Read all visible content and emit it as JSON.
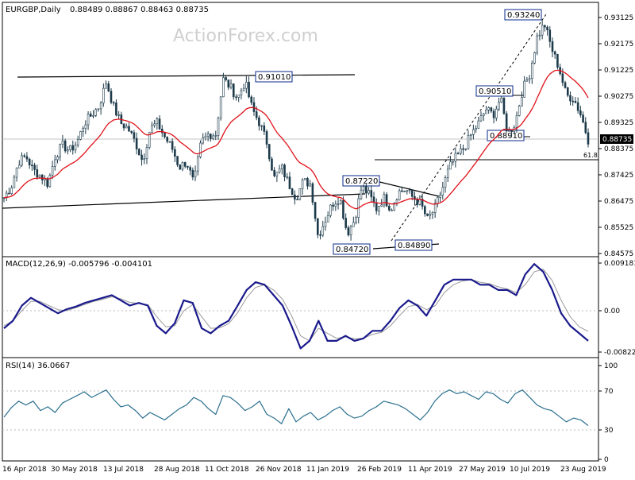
{
  "header": {
    "symbol": "EURGBP,Daily",
    "ohlc": "0.88489 0.88867 0.88463 0.88735"
  },
  "watermark": "ActionForex.com",
  "colors": {
    "price": "#1c3a4a",
    "ema": "#e0121a",
    "macd": "#1a1a8c",
    "signal": "#9a9a9a",
    "rsi": "#2a6f8e",
    "box": "#0a2a8a"
  },
  "chart_data": [
    {
      "type": "candlestick",
      "title": "EURGBP,Daily",
      "ylim": [
        0.8452,
        0.9338
      ],
      "x_labels": [
        "16 Apr 2018",
        "30 May 2018",
        "13 Jul 2018",
        "28 Aug 2018",
        "11 Oct 2018",
        "26 Nov 2018",
        "11 Jan 2019",
        "26 Feb 2019",
        "11 Apr 2019",
        "27 May 2019",
        "10 Jul 2019",
        "23 Aug 2019"
      ],
      "y_ticks": [
        "0.93125",
        "0.92175",
        "0.91225",
        "0.90275",
        "0.89325",
        "0.88375",
        "0.87425",
        "0.86475",
        "0.85525",
        "0.84575"
      ],
      "current_price": "0.88735",
      "annotations": [
        "0.93240",
        "0.91010",
        "0.90510",
        "0.88910",
        "0.87220",
        "0.84720",
        "0.84890",
        "61.8"
      ],
      "price_path": [
        0.866,
        0.87,
        0.879,
        0.881,
        0.876,
        0.874,
        0.871,
        0.881,
        0.885,
        0.883,
        0.886,
        0.893,
        0.896,
        0.899,
        0.908,
        0.899,
        0.893,
        0.891,
        0.886,
        0.879,
        0.891,
        0.893,
        0.888,
        0.884,
        0.877,
        0.879,
        0.871,
        0.886,
        0.889,
        0.889,
        0.909,
        0.906,
        0.902,
        0.908,
        0.898,
        0.893,
        0.886,
        0.873,
        0.877,
        0.871,
        0.866,
        0.872,
        0.871,
        0.852,
        0.858,
        0.864,
        0.866,
        0.853,
        0.858,
        0.87,
        0.867,
        0.862,
        0.866,
        0.862,
        0.868,
        0.869,
        0.866,
        0.864,
        0.858,
        0.862,
        0.869,
        0.877,
        0.881,
        0.884,
        0.889,
        0.893,
        0.898,
        0.896,
        0.902,
        0.889,
        0.893,
        0.905,
        0.911,
        0.924,
        0.929,
        0.92,
        0.913,
        0.903,
        0.902,
        0.896,
        0.887
      ]
    },
    {
      "type": "line",
      "title": "MACD(12,26,9) -0.005796 -0.004101",
      "ylim": [
        -0.009,
        0.0098
      ],
      "y_ticks": [
        "0.009181",
        "0.00",
        "-0.008225"
      ],
      "series": [
        {
          "name": "MACD",
          "values": [
            -0.0035,
            -0.002,
            0.001,
            0.0025,
            0.0015,
            0.0005,
            -0.0005,
            0.0003,
            0.0008,
            0.0015,
            0.002,
            0.0025,
            0.003,
            0.002,
            0.001,
            0.0015,
            0.001,
            -0.003,
            -0.0045,
            -0.0025,
            0.002,
            0.0015,
            -0.0035,
            -0.0045,
            -0.003,
            -0.002,
            0.001,
            0.004,
            0.0055,
            0.005,
            0.003,
            0.001,
            -0.003,
            -0.0075,
            -0.006,
            -0.002,
            -0.006,
            -0.006,
            -0.005,
            -0.006,
            -0.0055,
            -0.004,
            -0.004,
            -0.002,
            0.0005,
            0.002,
            0.001,
            -0.001,
            0.002,
            0.005,
            0.006,
            0.006,
            0.006,
            0.005,
            0.005,
            0.004,
            0.004,
            0.003,
            0.007,
            0.009,
            0.0075,
            0.004,
            -0.0005,
            -0.003,
            -0.0045,
            -0.006
          ]
        },
        {
          "name": "Signal",
          "values": [
            -0.003,
            -0.002,
            0.0,
            0.0018,
            0.0018,
            0.001,
            0.0002,
            0.0,
            0.0006,
            0.0012,
            0.0018,
            0.0022,
            0.0027,
            0.0023,
            0.0016,
            0.0014,
            0.0012,
            -0.0012,
            -0.0032,
            -0.003,
            0.0,
            0.0012,
            -0.0012,
            -0.0035,
            -0.0034,
            -0.0026,
            -0.0004,
            0.0025,
            0.0045,
            0.005,
            0.004,
            0.0022,
            -0.001,
            -0.005,
            -0.006,
            -0.0035,
            -0.0045,
            -0.0055,
            -0.0052,
            -0.0056,
            -0.0055,
            -0.0047,
            -0.0043,
            -0.003,
            -0.001,
            0.0008,
            0.0012,
            0.0002,
            0.001,
            0.0035,
            0.005,
            0.0057,
            0.006,
            0.0055,
            0.0052,
            0.0046,
            0.0042,
            0.0035,
            0.005,
            0.0075,
            0.008,
            0.0058,
            0.002,
            -0.0012,
            -0.0032,
            -0.0041
          ]
        }
      ]
    },
    {
      "type": "line",
      "title": "RSI(14) 36.0667",
      "ylim": [
        0,
        100
      ],
      "y_ticks": [
        "100",
        "70",
        "30",
        "0"
      ],
      "series": [
        {
          "name": "RSI",
          "values": [
            45,
            55,
            62,
            58,
            62,
            52,
            56,
            50,
            60,
            64,
            68,
            72,
            66,
            70,
            74,
            64,
            56,
            58,
            52,
            44,
            50,
            46,
            42,
            48,
            54,
            58,
            66,
            62,
            54,
            48,
            68,
            66,
            60,
            52,
            56,
            62,
            48,
            44,
            38,
            54,
            40,
            46,
            50,
            42,
            46,
            52,
            56,
            48,
            44,
            46,
            52,
            56,
            62,
            60,
            58,
            54,
            48,
            42,
            50,
            62,
            70,
            74,
            70,
            72,
            68,
            64,
            72,
            70,
            64,
            60,
            70,
            74,
            66,
            58,
            54,
            52,
            46,
            40,
            44,
            42,
            36
          ]
        }
      ]
    }
  ]
}
